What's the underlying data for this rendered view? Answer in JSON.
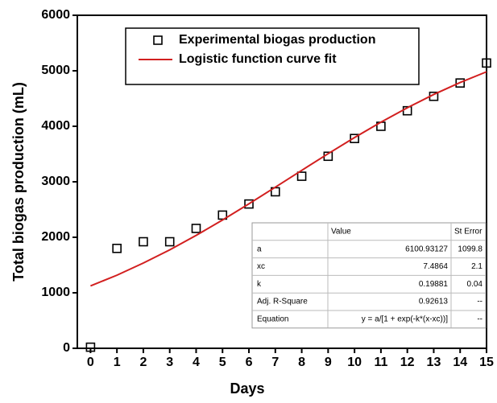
{
  "chart_data": {
    "type": "scatter",
    "x_label": "Days",
    "y_label": "Total biogas production (mL)",
    "x": [
      0,
      1,
      2,
      3,
      4,
      5,
      6,
      7,
      8,
      9,
      10,
      11,
      12,
      13,
      14,
      15
    ],
    "xlim": [
      -0.5,
      15
    ],
    "xticks": [
      0,
      1,
      2,
      3,
      4,
      5,
      6,
      7,
      8,
      9,
      10,
      11,
      12,
      13,
      14,
      15
    ],
    "ylim": [
      0,
      6000
    ],
    "yticks": [
      0,
      1000,
      2000,
      3000,
      4000,
      5000,
      6000
    ],
    "series": [
      {
        "name": "Experimental biogas production",
        "type": "scatter",
        "color": "#000000",
        "values": [
          20,
          1800,
          1920,
          1920,
          2160,
          2400,
          2600,
          2820,
          3100,
          3460,
          3780,
          4000,
          4280,
          4540,
          4780,
          5140
        ]
      },
      {
        "name": "Logistic function curve fit",
        "type": "line",
        "color": "#d21f1f",
        "values": [
          1124,
          1317,
          1536,
          1773,
          2034,
          2312,
          2603,
          2903,
          3206,
          3506,
          3797,
          4074,
          4334,
          4573,
          4789,
          4982
        ]
      }
    ],
    "table": {
      "header": [
        "Value",
        "St Error"
      ],
      "rows": [
        [
          "a",
          "6100.93127",
          "1099.8"
        ],
        [
          "xc",
          "7.4864",
          "2.1"
        ],
        [
          "k",
          "0.19881",
          "0.04"
        ],
        [
          "Adj. R-Square",
          "0.92613",
          "--"
        ],
        [
          "Equation",
          "y = a/[1 + exp(-k*(x-xc))]",
          "--"
        ]
      ]
    }
  }
}
